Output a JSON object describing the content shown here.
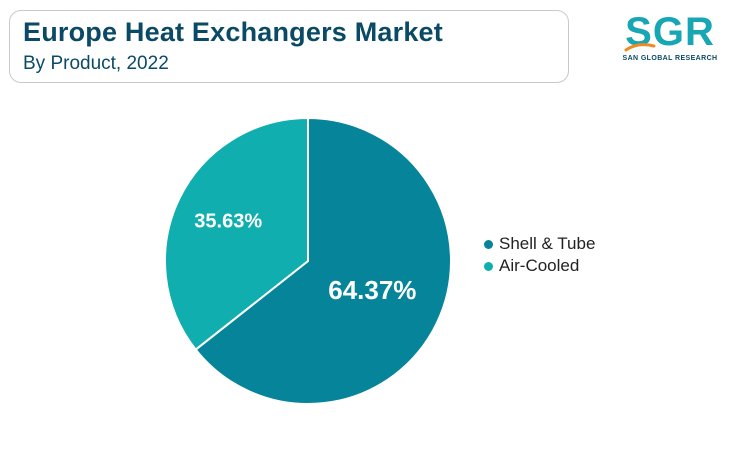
{
  "header": {
    "title": "Europe Heat Exchangers Market",
    "subtitle": "By Product, 2022"
  },
  "logo": {
    "text": "SGR",
    "subtext": "SAN GLOBAL RESEARCH",
    "colors": {
      "main": "#17a6b3",
      "accent": "#f08a24",
      "sub": "#0a4a66"
    }
  },
  "chart_data": {
    "type": "pie",
    "title": "Europe Heat Exchangers Market",
    "subtitle": "By Product, 2022",
    "categories": [
      "Shell & Tube",
      "Air-Cooled"
    ],
    "values": [
      64.37,
      35.63
    ],
    "labels": [
      "64.37%",
      "35.63%"
    ],
    "colors": [
      "#06849a",
      "#10aeae"
    ],
    "legend_position": "right"
  }
}
